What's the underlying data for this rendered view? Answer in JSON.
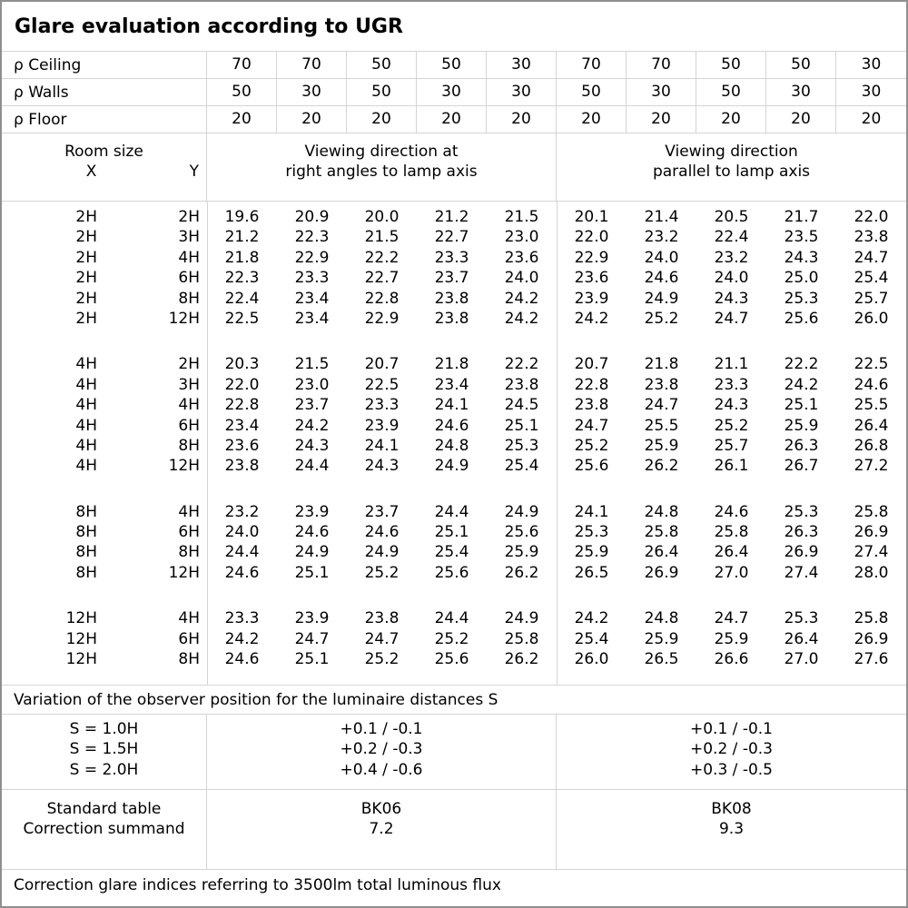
{
  "title": "Glare evaluation according to UGR",
  "reflectance": {
    "rows": [
      {
        "label": "ρ Ceiling",
        "values": [
          "70",
          "70",
          "50",
          "50",
          "30",
          "70",
          "70",
          "50",
          "50",
          "30"
        ]
      },
      {
        "label": "ρ Walls",
        "values": [
          "50",
          "30",
          "50",
          "30",
          "30",
          "50",
          "30",
          "50",
          "30",
          "30"
        ]
      },
      {
        "label": "ρ Floor",
        "values": [
          "20",
          "20",
          "20",
          "20",
          "20",
          "20",
          "20",
          "20",
          "20",
          "20"
        ]
      }
    ]
  },
  "header": {
    "room_size": "Room size",
    "x_label": "X",
    "y_label": "Y",
    "group1_line1": "Viewing direction at",
    "group1_line2": "right angles to lamp axis",
    "group2_line1": "Viewing direction",
    "group2_line2": "parallel to lamp axis"
  },
  "ugr_table": {
    "blocks": [
      {
        "rows": [
          {
            "x": "2H",
            "y": "2H",
            "right_angles": [
              "19.6",
              "20.9",
              "20.0",
              "21.2",
              "21.5"
            ],
            "parallel": [
              "20.1",
              "21.4",
              "20.5",
              "21.7",
              "22.0"
            ]
          },
          {
            "x": "2H",
            "y": "3H",
            "right_angles": [
              "21.2",
              "22.3",
              "21.5",
              "22.7",
              "23.0"
            ],
            "parallel": [
              "22.0",
              "23.2",
              "22.4",
              "23.5",
              "23.8"
            ]
          },
          {
            "x": "2H",
            "y": "4H",
            "right_angles": [
              "21.8",
              "22.9",
              "22.2",
              "23.3",
              "23.6"
            ],
            "parallel": [
              "22.9",
              "24.0",
              "23.2",
              "24.3",
              "24.7"
            ]
          },
          {
            "x": "2H",
            "y": "6H",
            "right_angles": [
              "22.3",
              "23.3",
              "22.7",
              "23.7",
              "24.0"
            ],
            "parallel": [
              "23.6",
              "24.6",
              "24.0",
              "25.0",
              "25.4"
            ]
          },
          {
            "x": "2H",
            "y": "8H",
            "right_angles": [
              "22.4",
              "23.4",
              "22.8",
              "23.8",
              "24.2"
            ],
            "parallel": [
              "23.9",
              "24.9",
              "24.3",
              "25.3",
              "25.7"
            ]
          },
          {
            "x": "2H",
            "y": "12H",
            "right_angles": [
              "22.5",
              "23.4",
              "22.9",
              "23.8",
              "24.2"
            ],
            "parallel": [
              "24.2",
              "25.2",
              "24.7",
              "25.6",
              "26.0"
            ]
          }
        ]
      },
      {
        "rows": [
          {
            "x": "4H",
            "y": "2H",
            "right_angles": [
              "20.3",
              "21.5",
              "20.7",
              "21.8",
              "22.2"
            ],
            "parallel": [
              "20.7",
              "21.8",
              "21.1",
              "22.2",
              "22.5"
            ]
          },
          {
            "x": "4H",
            "y": "3H",
            "right_angles": [
              "22.0",
              "23.0",
              "22.5",
              "23.4",
              "23.8"
            ],
            "parallel": [
              "22.8",
              "23.8",
              "23.3",
              "24.2",
              "24.6"
            ]
          },
          {
            "x": "4H",
            "y": "4H",
            "right_angles": [
              "22.8",
              "23.7",
              "23.3",
              "24.1",
              "24.5"
            ],
            "parallel": [
              "23.8",
              "24.7",
              "24.3",
              "25.1",
              "25.5"
            ]
          },
          {
            "x": "4H",
            "y": "6H",
            "right_angles": [
              "23.4",
              "24.2",
              "23.9",
              "24.6",
              "25.1"
            ],
            "parallel": [
              "24.7",
              "25.5",
              "25.2",
              "25.9",
              "26.4"
            ]
          },
          {
            "x": "4H",
            "y": "8H",
            "right_angles": [
              "23.6",
              "24.3",
              "24.1",
              "24.8",
              "25.3"
            ],
            "parallel": [
              "25.2",
              "25.9",
              "25.7",
              "26.3",
              "26.8"
            ]
          },
          {
            "x": "4H",
            "y": "12H",
            "right_angles": [
              "23.8",
              "24.4",
              "24.3",
              "24.9",
              "25.4"
            ],
            "parallel": [
              "25.6",
              "26.2",
              "26.1",
              "26.7",
              "27.2"
            ]
          }
        ]
      },
      {
        "rows": [
          {
            "x": "8H",
            "y": "4H",
            "right_angles": [
              "23.2",
              "23.9",
              "23.7",
              "24.4",
              "24.9"
            ],
            "parallel": [
              "24.1",
              "24.8",
              "24.6",
              "25.3",
              "25.8"
            ]
          },
          {
            "x": "8H",
            "y": "6H",
            "right_angles": [
              "24.0",
              "24.6",
              "24.6",
              "25.1",
              "25.6"
            ],
            "parallel": [
              "25.3",
              "25.8",
              "25.8",
              "26.3",
              "26.9"
            ]
          },
          {
            "x": "8H",
            "y": "8H",
            "right_angles": [
              "24.4",
              "24.9",
              "24.9",
              "25.4",
              "25.9"
            ],
            "parallel": [
              "25.9",
              "26.4",
              "26.4",
              "26.9",
              "27.4"
            ]
          },
          {
            "x": "8H",
            "y": "12H",
            "right_angles": [
              "24.6",
              "25.1",
              "25.2",
              "25.6",
              "26.2"
            ],
            "parallel": [
              "26.5",
              "26.9",
              "27.0",
              "27.4",
              "28.0"
            ]
          }
        ]
      },
      {
        "rows": [
          {
            "x": "12H",
            "y": "4H",
            "right_angles": [
              "23.3",
              "23.9",
              "23.8",
              "24.4",
              "24.9"
            ],
            "parallel": [
              "24.2",
              "24.8",
              "24.7",
              "25.3",
              "25.8"
            ]
          },
          {
            "x": "12H",
            "y": "6H",
            "right_angles": [
              "24.2",
              "24.7",
              "24.7",
              "25.2",
              "25.8"
            ],
            "parallel": [
              "25.4",
              "25.9",
              "25.9",
              "26.4",
              "26.9"
            ]
          },
          {
            "x": "12H",
            "y": "8H",
            "right_angles": [
              "24.6",
              "25.1",
              "25.2",
              "25.6",
              "26.2"
            ],
            "parallel": [
              "26.0",
              "26.5",
              "26.6",
              "27.0",
              "27.6"
            ]
          }
        ]
      }
    ]
  },
  "variation": {
    "heading": "Variation of the observer position for the luminaire distances S",
    "rows": [
      {
        "label": "S = 1.0H",
        "group1": "+0.1 / -0.1",
        "group2": "+0.1 / -0.1"
      },
      {
        "label": "S = 1.5H",
        "group1": "+0.2 / -0.3",
        "group2": "+0.2 / -0.3"
      },
      {
        "label": "S = 2.0H",
        "group1": "+0.4 / -0.6",
        "group2": "+0.3 / -0.5"
      }
    ]
  },
  "standard": {
    "row1_label": "Standard table",
    "row2_label": "Correction summand",
    "group1_table": "BK06",
    "group1_summand": "7.2",
    "group2_table": "BK08",
    "group2_summand": "9.3"
  },
  "footer": "Correction glare indices referring to 3500lm total luminous flux"
}
